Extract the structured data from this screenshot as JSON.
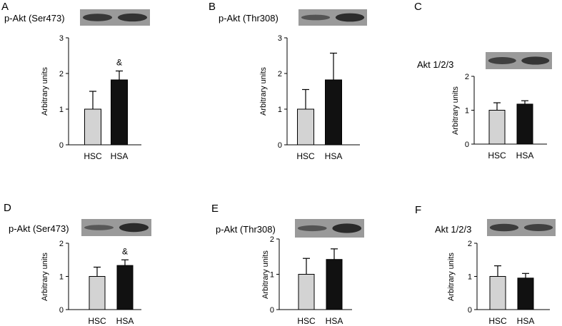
{
  "chart_data": [
    {
      "panel": "A",
      "type": "bar",
      "blot_label": "p-Akt (Ser473)",
      "ylabel": "Arbitrary units",
      "categories": [
        "HSC",
        "HSA"
      ],
      "values": [
        1.0,
        1.82
      ],
      "errors": [
        0.5,
        0.25
      ],
      "bar_colors": [
        "#d3d3d3",
        "#111111"
      ],
      "annotations": [
        "",
        "&"
      ],
      "ylim": [
        0,
        3
      ],
      "yticks": [
        "0",
        "1",
        "2",
        "3"
      ],
      "blot_bands": [
        0.8,
        0.88
      ]
    },
    {
      "panel": "B",
      "type": "bar",
      "blot_label": "p-Akt (Thr308)",
      "ylabel": "Arbitrary units",
      "categories": [
        "HSC",
        "HSA"
      ],
      "values": [
        1.0,
        1.82
      ],
      "errors": [
        0.55,
        0.75
      ],
      "bar_colors": [
        "#d3d3d3",
        "#111111"
      ],
      "annotations": [
        "",
        ""
      ],
      "ylim": [
        0,
        3
      ],
      "yticks": [
        "0",
        "1",
        "2",
        "3"
      ],
      "blot_bands": [
        0.45,
        0.95
      ]
    },
    {
      "panel": "C",
      "type": "bar",
      "blot_label": "Akt 1/2/3",
      "ylabel": "Arbitrary units",
      "categories": [
        "HSC",
        "HSA"
      ],
      "values": [
        1.0,
        1.18
      ],
      "errors": [
        0.22,
        0.1
      ],
      "bar_colors": [
        "#d3d3d3",
        "#111111"
      ],
      "annotations": [
        "",
        ""
      ],
      "ylim": [
        0,
        2
      ],
      "yticks": [
        "0",
        "1",
        "2"
      ],
      "blot_bands": [
        0.7,
        0.85
      ]
    },
    {
      "panel": "D",
      "type": "bar",
      "blot_label": "p-Akt (Ser473)",
      "ylabel": "Arbitrary units",
      "categories": [
        "HSC",
        "HSA"
      ],
      "values": [
        1.0,
        1.33
      ],
      "errors": [
        0.28,
        0.17
      ],
      "bar_colors": [
        "#d3d3d3",
        "#111111"
      ],
      "annotations": [
        "",
        "&"
      ],
      "ylim": [
        0,
        2
      ],
      "yticks": [
        "0",
        "1",
        "2"
      ],
      "blot_bands": [
        0.4,
        0.98
      ]
    },
    {
      "panel": "E",
      "type": "bar",
      "blot_label": "p-Akt (Thr308)",
      "ylabel": "Arbitrary units",
      "categories": [
        "HSC",
        "HSA"
      ],
      "values": [
        1.0,
        1.42
      ],
      "errors": [
        0.45,
        0.3
      ],
      "bar_colors": [
        "#d3d3d3",
        "#111111"
      ],
      "annotations": [
        "",
        ""
      ],
      "ylim": [
        0,
        2
      ],
      "yticks": [
        "0",
        "1",
        "2"
      ],
      "blot_bands": [
        0.45,
        0.98
      ]
    },
    {
      "panel": "F",
      "type": "bar",
      "blot_label": "Akt 1/2/3",
      "ylabel": "Arbitrary units",
      "categories": [
        "HSC",
        "HSA"
      ],
      "values": [
        1.0,
        0.95
      ],
      "errors": [
        0.32,
        0.14
      ],
      "bar_colors": [
        "#d3d3d3",
        "#111111"
      ],
      "annotations": [
        "",
        ""
      ],
      "ylim": [
        0,
        2
      ],
      "yticks": [
        "0",
        "1",
        "2"
      ],
      "blot_bands": [
        0.75,
        0.7
      ]
    }
  ]
}
